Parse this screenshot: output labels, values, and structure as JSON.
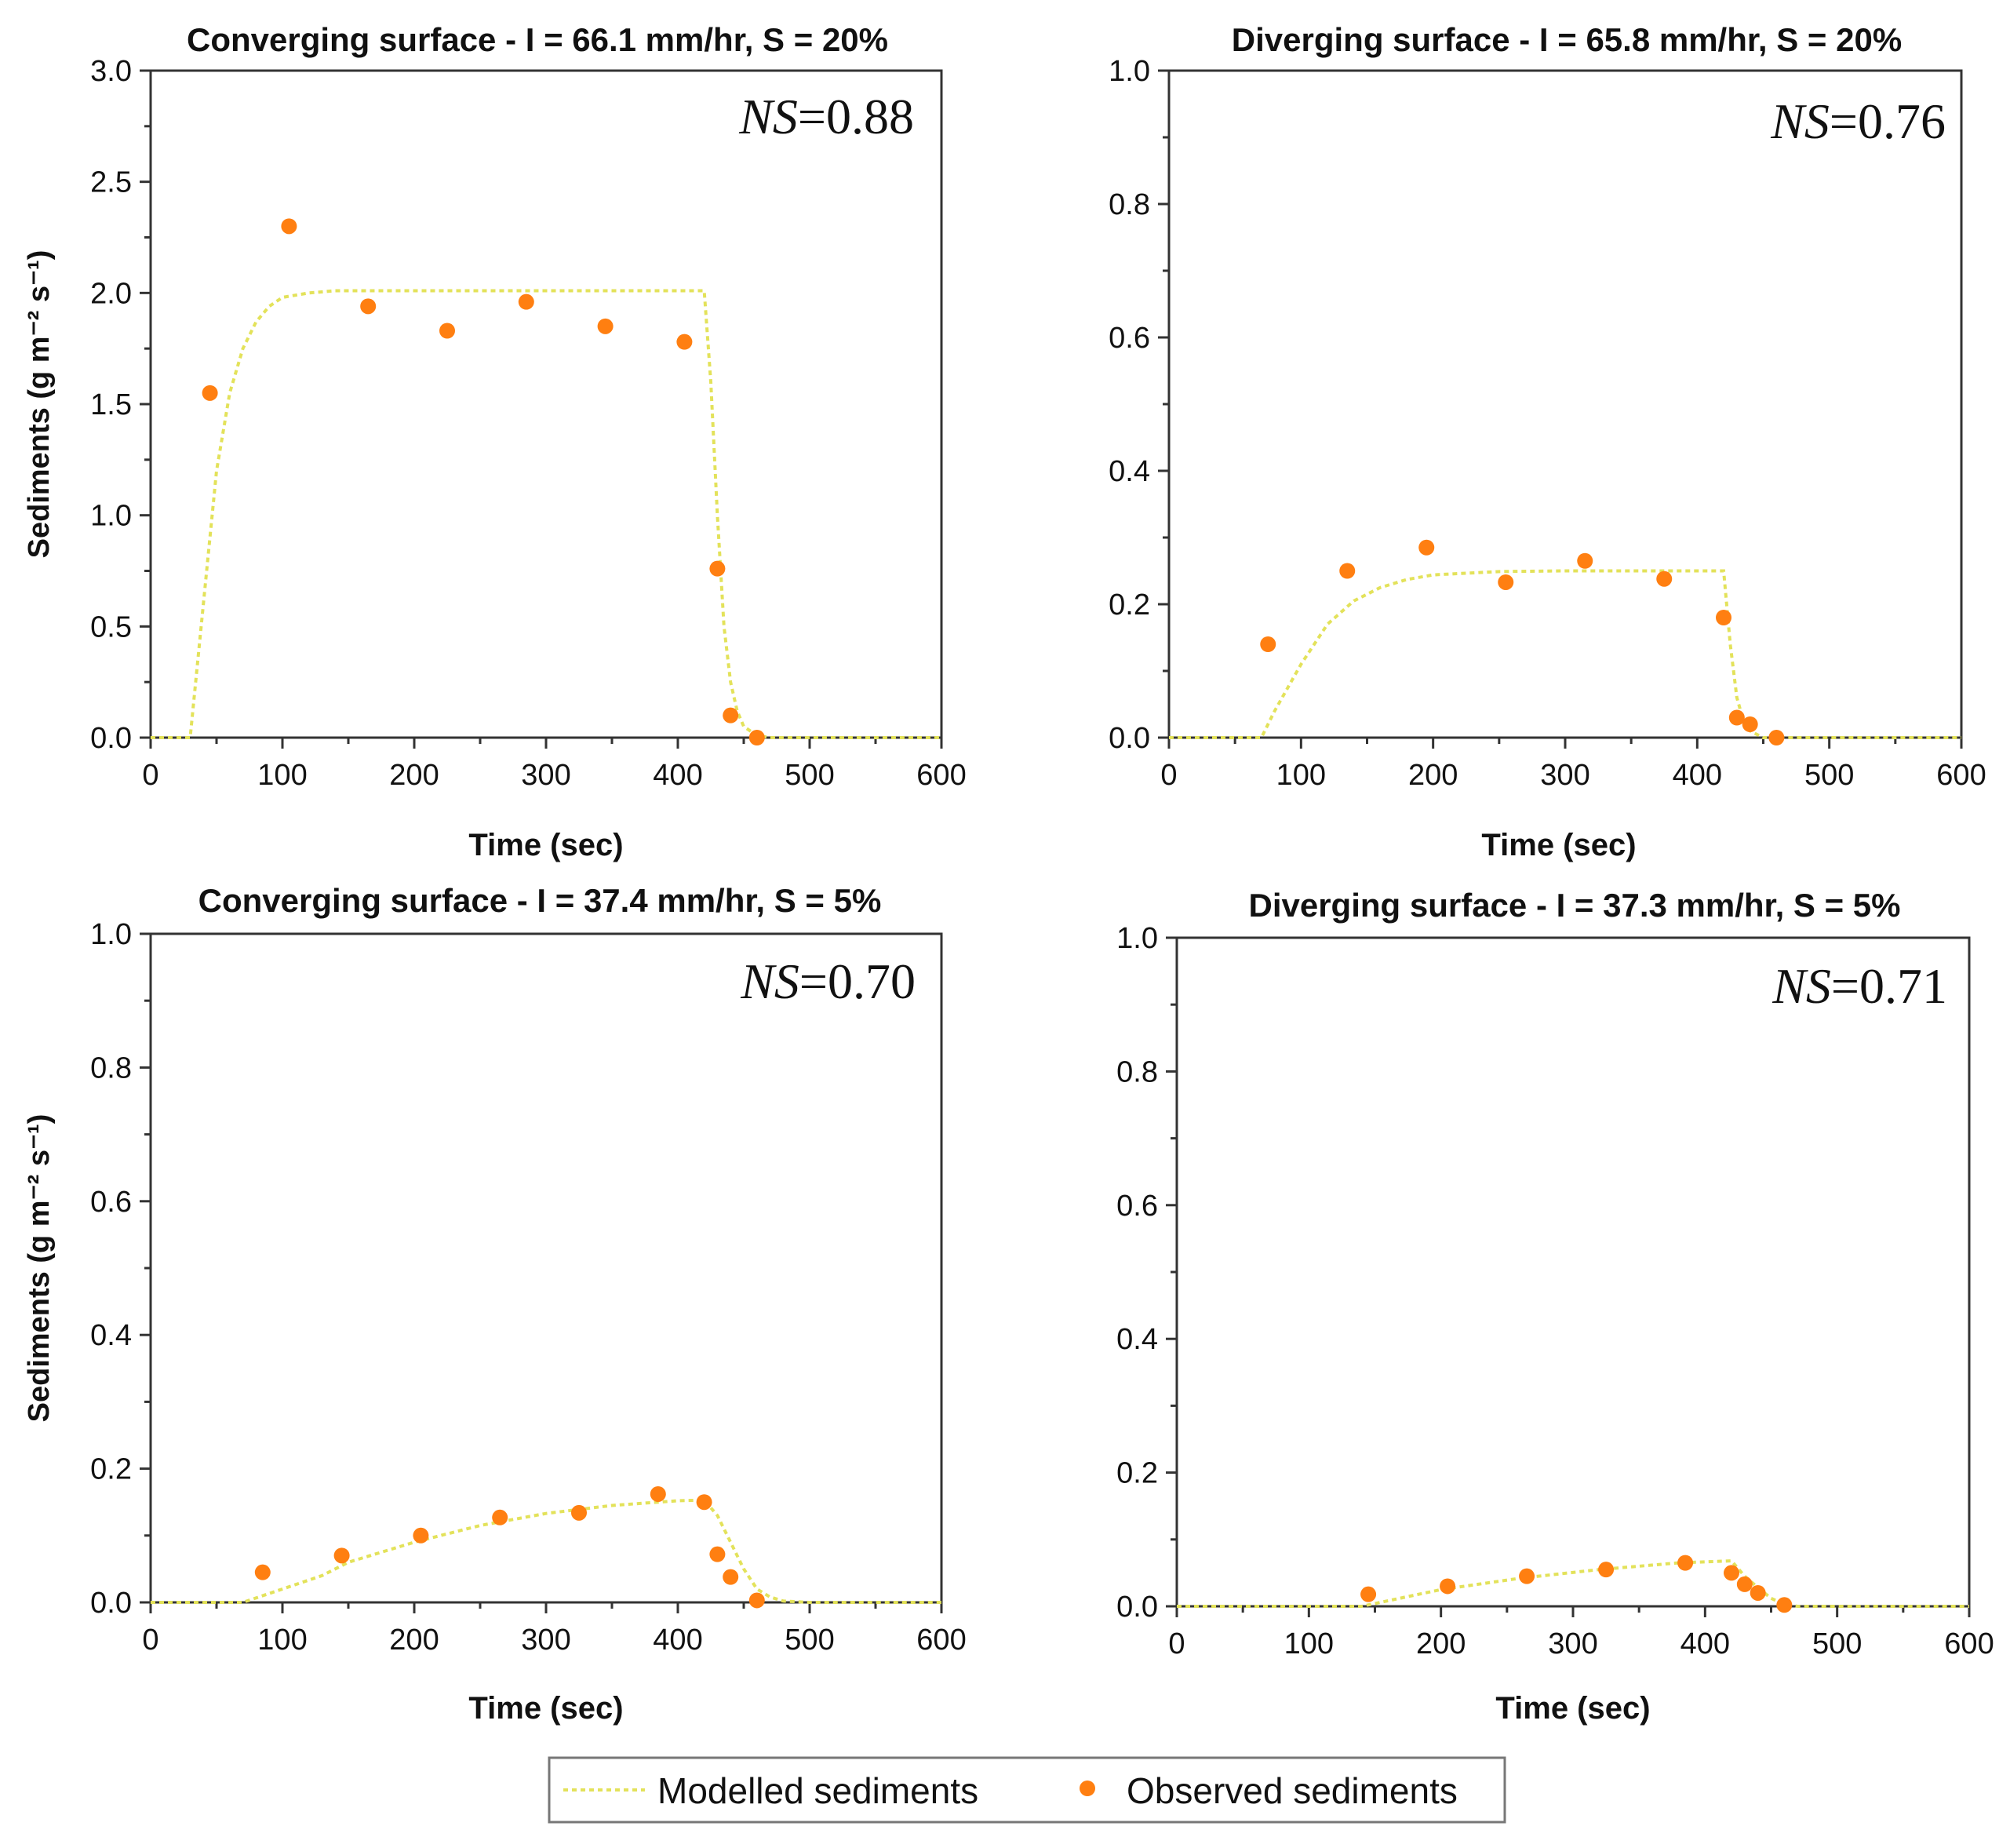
{
  "chart_data": [
    {
      "type": "line",
      "title": "Converging surface - I = 66.1 mm/hr, S = 20%",
      "ns_label": "NS",
      "ns_value": "=0.88",
      "xlabel": "Time (sec)",
      "ylabel": "Sediments (g m⁻² s⁻¹)",
      "xlim": [
        0,
        600
      ],
      "ylim": [
        0,
        3.0
      ],
      "xticks": [
        "0",
        "100",
        "200",
        "300",
        "400",
        "500",
        "600"
      ],
      "yticks": [
        "0.0",
        "0.5",
        "1.0",
        "1.5",
        "2.0",
        "2.5",
        "3.0"
      ],
      "series": [
        {
          "name": "Modelled sediments",
          "x": [
            0,
            30,
            40,
            50,
            60,
            70,
            80,
            90,
            100,
            120,
            140,
            200,
            300,
            400,
            420,
            425,
            430,
            435,
            440,
            445,
            450,
            460,
            470,
            500,
            600
          ],
          "y": [
            0,
            0,
            0.6,
            1.2,
            1.55,
            1.75,
            1.87,
            1.94,
            1.98,
            2.0,
            2.01,
            2.01,
            2.01,
            2.01,
            2.01,
            1.6,
            1.0,
            0.5,
            0.25,
            0.12,
            0.05,
            0.01,
            0,
            0,
            0
          ]
        },
        {
          "name": "Observed sediments",
          "x": [
            45,
            105,
            165,
            225,
            285,
            345,
            405,
            430,
            440,
            460
          ],
          "y": [
            1.55,
            2.3,
            1.94,
            1.83,
            1.96,
            1.85,
            1.78,
            0.76,
            0.1,
            0.0
          ]
        }
      ]
    },
    {
      "type": "line",
      "title": "Diverging surface - I = 65.8 mm/hr, S = 20%",
      "ns_label": "NS",
      "ns_value": "=0.76",
      "xlabel": "Time (sec)",
      "ylabel": "",
      "xlim": [
        0,
        600
      ],
      "ylim": [
        0,
        1.0
      ],
      "xticks": [
        "0",
        "100",
        "200",
        "300",
        "400",
        "500",
        "600"
      ],
      "yticks": [
        "0.0",
        "0.2",
        "0.4",
        "0.6",
        "0.8",
        "1.0"
      ],
      "series": [
        {
          "name": "Modelled sediments",
          "x": [
            0,
            70,
            80,
            100,
            120,
            140,
            160,
            180,
            200,
            250,
            300,
            400,
            420,
            425,
            430,
            435,
            440,
            450,
            460,
            600
          ],
          "y": [
            0,
            0,
            0.04,
            0.11,
            0.17,
            0.205,
            0.225,
            0.237,
            0.244,
            0.249,
            0.25,
            0.25,
            0.25,
            0.14,
            0.06,
            0.025,
            0.01,
            0.0,
            0,
            0
          ]
        },
        {
          "name": "Observed sediments",
          "x": [
            75,
            135,
            195,
            255,
            315,
            375,
            420,
            430,
            440,
            460
          ],
          "y": [
            0.14,
            0.25,
            0.285,
            0.233,
            0.265,
            0.238,
            0.18,
            0.03,
            0.02,
            0.0
          ]
        }
      ]
    },
    {
      "type": "line",
      "title": "Converging surface - I = 37.4 mm/hr, S = 5%",
      "ns_label": "NS",
      "ns_value": "=0.70",
      "xlabel": "Time (sec)",
      "ylabel": "Sediments (g m⁻² s⁻¹)",
      "xlim": [
        0,
        600
      ],
      "ylim": [
        0,
        1.0
      ],
      "xticks": [
        "0",
        "100",
        "200",
        "300",
        "400",
        "500",
        "600"
      ],
      "yticks": [
        "0.0",
        "0.2",
        "0.4",
        "0.6",
        "0.8",
        "1.0"
      ],
      "series": [
        {
          "name": "Modelled sediments",
          "x": [
            0,
            70,
            100,
            130,
            150,
            200,
            250,
            300,
            350,
            400,
            420,
            430,
            440,
            450,
            460,
            470,
            480,
            500,
            600
          ],
          "y": [
            0,
            0,
            0.02,
            0.04,
            0.06,
            0.09,
            0.115,
            0.133,
            0.145,
            0.152,
            0.153,
            0.13,
            0.09,
            0.05,
            0.02,
            0.008,
            0.002,
            0,
            0
          ]
        },
        {
          "name": "Observed sediments",
          "x": [
            85,
            145,
            205,
            265,
            325,
            385,
            420,
            430,
            440,
            460
          ],
          "y": [
            0.045,
            0.07,
            0.1,
            0.127,
            0.134,
            0.162,
            0.15,
            0.072,
            0.038,
            0.003
          ]
        }
      ]
    },
    {
      "type": "line",
      "title": "Diverging surface - I = 37.3 mm/hr, S = 5%",
      "ns_label": "NS",
      "ns_value": "=0.71",
      "xlabel": "Time (sec)",
      "ylabel": "",
      "xlim": [
        0,
        600
      ],
      "ylim": [
        0,
        1.0
      ],
      "xticks": [
        "0",
        "100",
        "200",
        "300",
        "400",
        "500",
        "600"
      ],
      "yticks": [
        "0.0",
        "0.2",
        "0.4",
        "0.6",
        "0.8",
        "1.0"
      ],
      "series": [
        {
          "name": "Modelled sediments",
          "x": [
            0,
            140,
            200,
            260,
            320,
            380,
            420,
            430,
            440,
            450,
            460,
            470,
            600
          ],
          "y": [
            0,
            0,
            0.025,
            0.042,
            0.055,
            0.065,
            0.068,
            0.045,
            0.028,
            0.012,
            0.003,
            0,
            0
          ]
        },
        {
          "name": "Observed sediments",
          "x": [
            145,
            205,
            265,
            325,
            385,
            420,
            430,
            440,
            460
          ],
          "y": [
            0.018,
            0.03,
            0.045,
            0.055,
            0.065,
            0.05,
            0.033,
            0.02,
            0.002
          ]
        }
      ]
    }
  ],
  "legend": {
    "modelled_label": "Modelled sediments",
    "observed_label": "Observed sediments"
  },
  "colors": {
    "modelled": "#e3e25a",
    "observed": "#ff7f11"
  }
}
